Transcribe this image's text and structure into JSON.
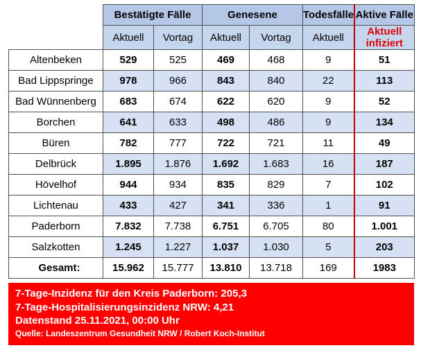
{
  "headers": {
    "group1": "Bestätigte Fälle",
    "group2": "Genesene",
    "group3": "Todesfälle",
    "group4": "Aktive Fälle",
    "aktuell": "Aktuell",
    "vortag": "Vortag",
    "aktive_sub_line1": "Aktuell",
    "aktive_sub_line2": "infiziert"
  },
  "rows": [
    {
      "name": "Altenbeken",
      "b_akt": "529",
      "b_vor": "525",
      "g_akt": "469",
      "g_vor": "468",
      "tod": "9",
      "aktiv": "51"
    },
    {
      "name": "Bad Lippspringe",
      "b_akt": "978",
      "b_vor": "966",
      "g_akt": "843",
      "g_vor": "840",
      "tod": "22",
      "aktiv": "113"
    },
    {
      "name": "Bad Wünnenberg",
      "b_akt": "683",
      "b_vor": "674",
      "g_akt": "622",
      "g_vor": "620",
      "tod": "9",
      "aktiv": "52"
    },
    {
      "name": "Borchen",
      "b_akt": "641",
      "b_vor": "633",
      "g_akt": "498",
      "g_vor": "486",
      "tod": "9",
      "aktiv": "134"
    },
    {
      "name": "Büren",
      "b_akt": "782",
      "b_vor": "777",
      "g_akt": "722",
      "g_vor": "721",
      "tod": "11",
      "aktiv": "49"
    },
    {
      "name": "Delbrück",
      "b_akt": "1.895",
      "b_vor": "1.876",
      "g_akt": "1.692",
      "g_vor": "1.683",
      "tod": "16",
      "aktiv": "187"
    },
    {
      "name": "Hövelhof",
      "b_akt": "944",
      "b_vor": "934",
      "g_akt": "835",
      "g_vor": "829",
      "tod": "7",
      "aktiv": "102"
    },
    {
      "name": "Lichtenau",
      "b_akt": "433",
      "b_vor": "427",
      "g_akt": "341",
      "g_vor": "336",
      "tod": "1",
      "aktiv": "91"
    },
    {
      "name": "Paderborn",
      "b_akt": "7.832",
      "b_vor": "7.738",
      "g_akt": "6.751",
      "g_vor": "6.705",
      "tod": "80",
      "aktiv": "1.001"
    },
    {
      "name": "Salzkotten",
      "b_akt": "1.245",
      "b_vor": "1.227",
      "g_akt": "1.037",
      "g_vor": "1.030",
      "tod": "5",
      "aktiv": "203"
    }
  ],
  "total": {
    "name": "Gesamt:",
    "b_akt": "15.962",
    "b_vor": "15.777",
    "g_akt": "13.810",
    "g_vor": "13.718",
    "tod": "169",
    "aktiv": "1983"
  },
  "info": {
    "line1": "7-Tage-Inzidenz für den Kreis Paderborn: 205,3",
    "line2": "7-Tage-Hospitalisierungsinzidenz NRW: 4,21",
    "line3": "Datenstand 25.11.2021, 00:00 Uhr",
    "source": "Quelle: Landeszentrum Gesundheit NRW / Robert Koch-Institut"
  },
  "colors": {
    "header_fill": "#b4c7e7",
    "row_shade": "#d6e2f4",
    "accent_red": "#ff0000",
    "divider": "#c00000"
  }
}
